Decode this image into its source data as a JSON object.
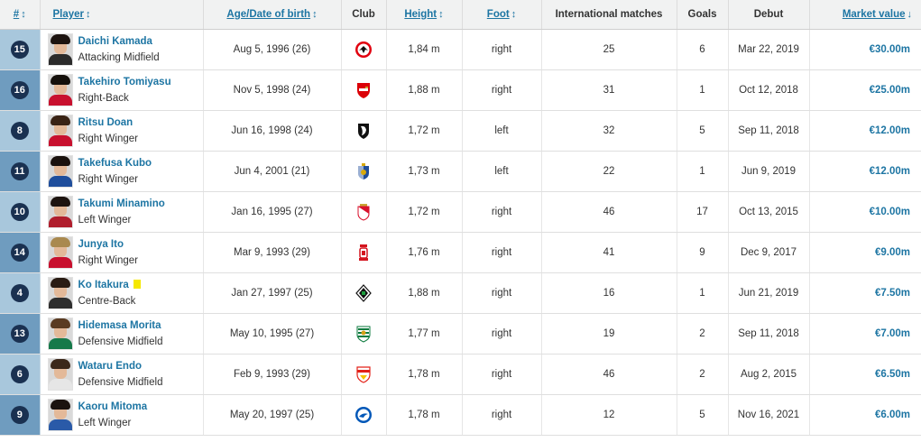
{
  "columns": {
    "number": "#",
    "player": "Player",
    "age": "Age/Date of birth",
    "club": "Club",
    "height": "Height",
    "foot": "Foot",
    "caps": "International matches",
    "goals": "Goals",
    "debut": "Debut",
    "value": "Market value"
  },
  "sort_arrows": {
    "updown": "↕",
    "down": "↓"
  },
  "players": [
    {
      "number": "15",
      "name": "Daichi Kamada",
      "position": "Attacking Midfield",
      "age": "Aug 5, 1996 (26)",
      "club_icon": "eintracht-frankfurt-crest",
      "height": "1,84 m",
      "foot": "right",
      "caps": "25",
      "goals": "6",
      "debut": "Mar 22, 2019",
      "value": "€30.00m",
      "hair": "#1d1410",
      "shirt": "#2b2b2b"
    },
    {
      "number": "16",
      "name": "Takehiro Tomiyasu",
      "position": "Right-Back",
      "age": "Nov 5, 1998 (24)",
      "club_icon": "arsenal-crest",
      "height": "1,88 m",
      "foot": "right",
      "caps": "31",
      "goals": "1",
      "debut": "Oct 12, 2018",
      "value": "€25.00m",
      "hair": "#15100c",
      "shirt": "#c8102e"
    },
    {
      "number": "8",
      "name": "Ritsu Doan",
      "position": "Right Winger",
      "age": "Jun 16, 1998 (24)",
      "club_icon": "sc-freiburg-crest",
      "height": "1,72 m",
      "foot": "left",
      "caps": "32",
      "goals": "5",
      "debut": "Sep 11, 2018",
      "value": "€12.00m",
      "hair": "#3a2416",
      "shirt": "#c8102e"
    },
    {
      "number": "11",
      "name": "Takefusa Kubo",
      "position": "Right Winger",
      "age": "Jun 4, 2001 (21)",
      "club_icon": "real-sociedad-crest",
      "height": "1,73 m",
      "foot": "left",
      "caps": "22",
      "goals": "1",
      "debut": "Jun 9, 2019",
      "value": "€12.00m",
      "hair": "#1a120e",
      "shirt": "#1f4e9c"
    },
    {
      "number": "10",
      "name": "Takumi Minamino",
      "position": "Left Winger",
      "age": "Jan 16, 1995 (27)",
      "club_icon": "as-monaco-crest",
      "height": "1,72 m",
      "foot": "right",
      "caps": "46",
      "goals": "17",
      "debut": "Oct 13, 2015",
      "value": "€10.00m",
      "hair": "#1d1410",
      "shirt": "#b01e2d"
    },
    {
      "number": "14",
      "name": "Junya Ito",
      "position": "Right Winger",
      "age": "Mar 9, 1993 (29)",
      "club_icon": "stade-de-reims-crest",
      "height": "1,76 m",
      "foot": "right",
      "caps": "41",
      "goals": "9",
      "debut": "Dec 9, 2017",
      "value": "€9.00m",
      "hair": "#a9894f",
      "shirt": "#c8102e"
    },
    {
      "number": "4",
      "name": "Ko Itakura",
      "position": "Centre-Back",
      "age": "Jan 27, 1997 (25)",
      "club_icon": "borussia-monchengladbach-crest",
      "height": "1,88 m",
      "foot": "right",
      "caps": "16",
      "goals": "1",
      "debut": "Jun 21, 2019",
      "value": "€7.50m",
      "hair": "#2a1c14",
      "shirt": "#2e2e2e",
      "yellow_card": true
    },
    {
      "number": "13",
      "name": "Hidemasa Morita",
      "position": "Defensive Midfield",
      "age": "May 10, 1995 (27)",
      "club_icon": "sporting-cp-crest",
      "height": "1,77 m",
      "foot": "right",
      "caps": "19",
      "goals": "2",
      "debut": "Sep 11, 2018",
      "value": "€7.00m",
      "hair": "#5a3b22",
      "shirt": "#16794a"
    },
    {
      "number": "6",
      "name": "Wataru Endo",
      "position": "Defensive Midfield",
      "age": "Feb 9, 1993 (29)",
      "club_icon": "vfb-stuttgart-crest",
      "height": "1,78 m",
      "foot": "right",
      "caps": "46",
      "goals": "2",
      "debut": "Aug 2, 2015",
      "value": "€6.50m",
      "hair": "#3b281a",
      "shirt": "#e6e6e6"
    },
    {
      "number": "9",
      "name": "Kaoru Mitoma",
      "position": "Left Winger",
      "age": "May 20, 1997 (25)",
      "club_icon": "brighton-crest",
      "height": "1,78 m",
      "foot": "right",
      "caps": "12",
      "goals": "5",
      "debut": "Nov 16, 2021",
      "value": "€6.00m",
      "hair": "#1b130f",
      "shirt": "#2a5aa8"
    }
  ]
}
